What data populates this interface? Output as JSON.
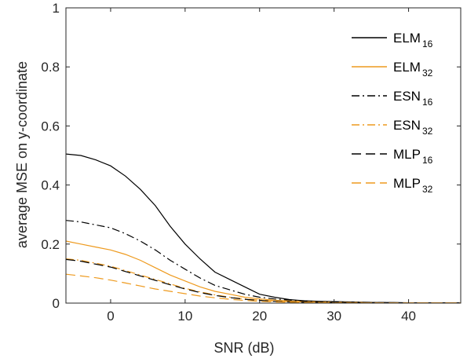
{
  "chart_data": {
    "type": "line",
    "xlabel": "SNR (dB)",
    "ylabel": "average MSE on y-coordinate",
    "xlim": [
      -6,
      47
    ],
    "ylim": [
      0,
      1
    ],
    "x_ticks": [
      0,
      10,
      20,
      30,
      40
    ],
    "y_ticks": [
      0,
      0.2,
      0.4,
      0.6,
      0.8,
      1
    ],
    "x_tick_labels": [
      "0",
      "10",
      "20",
      "30",
      "40"
    ],
    "y_tick_labels": [
      "0",
      "0.2",
      "0.4",
      "0.6",
      "0.8",
      "1"
    ],
    "grid": false,
    "legend_position": "top-right",
    "x": [
      -6,
      -4,
      -2,
      0,
      2,
      4,
      6,
      8,
      10,
      12,
      14,
      16,
      18,
      20,
      22,
      24,
      26,
      28,
      30,
      32,
      34,
      36,
      38,
      40,
      42,
      44,
      47
    ],
    "series": [
      {
        "name": "ELM",
        "name_sub": "16",
        "color": "#000000",
        "dash": "solid",
        "values": [
          0.505,
          0.5,
          0.485,
          0.465,
          0.43,
          0.385,
          0.33,
          0.26,
          0.2,
          0.15,
          0.105,
          0.08,
          0.055,
          0.03,
          0.02,
          0.012,
          0.008,
          0.006,
          0.005,
          0.004,
          0.003,
          0.002,
          0.002,
          0.001,
          0.001,
          0.001,
          0.001
        ]
      },
      {
        "name": "ELM",
        "name_sub": "32",
        "color": "#EE9A1E",
        "dash": "solid",
        "values": [
          0.21,
          0.2,
          0.19,
          0.18,
          0.165,
          0.145,
          0.12,
          0.095,
          0.075,
          0.055,
          0.04,
          0.03,
          0.02,
          0.014,
          0.01,
          0.007,
          0.005,
          0.004,
          0.003,
          0.002,
          0.002,
          0.001,
          0.001,
          0.001,
          0.001,
          0.001,
          0.001
        ]
      },
      {
        "name": "ESN",
        "name_sub": "16",
        "color": "#000000",
        "dash": "dashdot",
        "values": [
          0.28,
          0.275,
          0.265,
          0.255,
          0.235,
          0.21,
          0.18,
          0.145,
          0.115,
          0.085,
          0.06,
          0.045,
          0.03,
          0.02,
          0.014,
          0.01,
          0.007,
          0.005,
          0.004,
          0.003,
          0.002,
          0.002,
          0.001,
          0.001,
          0.001,
          0.001,
          0.001
        ]
      },
      {
        "name": "ESN",
        "name_sub": "32",
        "color": "#EE9A1E",
        "dash": "dashdot",
        "values": [
          0.15,
          0.145,
          0.135,
          0.125,
          0.11,
          0.095,
          0.08,
          0.065,
          0.05,
          0.038,
          0.028,
          0.02,
          0.014,
          0.01,
          0.007,
          0.005,
          0.004,
          0.003,
          0.002,
          0.002,
          0.001,
          0.001,
          0.001,
          0.001,
          0.001,
          0.001,
          0.001
        ]
      },
      {
        "name": "MLP",
        "name_sub": "16",
        "color": "#000000",
        "dash": "dashed",
        "values": [
          0.148,
          0.142,
          0.132,
          0.122,
          0.107,
          0.092,
          0.077,
          0.062,
          0.048,
          0.036,
          0.026,
          0.019,
          0.013,
          0.009,
          0.006,
          0.004,
          0.003,
          0.002,
          0.002,
          0.001,
          0.001,
          0.001,
          0.001,
          0.001,
          0.001,
          0.001,
          0.001
        ]
      },
      {
        "name": "MLP",
        "name_sub": "32",
        "color": "#EE9A1E",
        "dash": "dashed",
        "values": [
          0.098,
          0.092,
          0.086,
          0.078,
          0.068,
          0.058,
          0.048,
          0.04,
          0.032,
          0.024,
          0.018,
          0.013,
          0.009,
          0.006,
          0.004,
          0.003,
          0.002,
          0.002,
          0.001,
          0.001,
          0.001,
          0.001,
          0.001,
          0.001,
          0.001,
          0.001,
          0.001
        ]
      }
    ]
  }
}
